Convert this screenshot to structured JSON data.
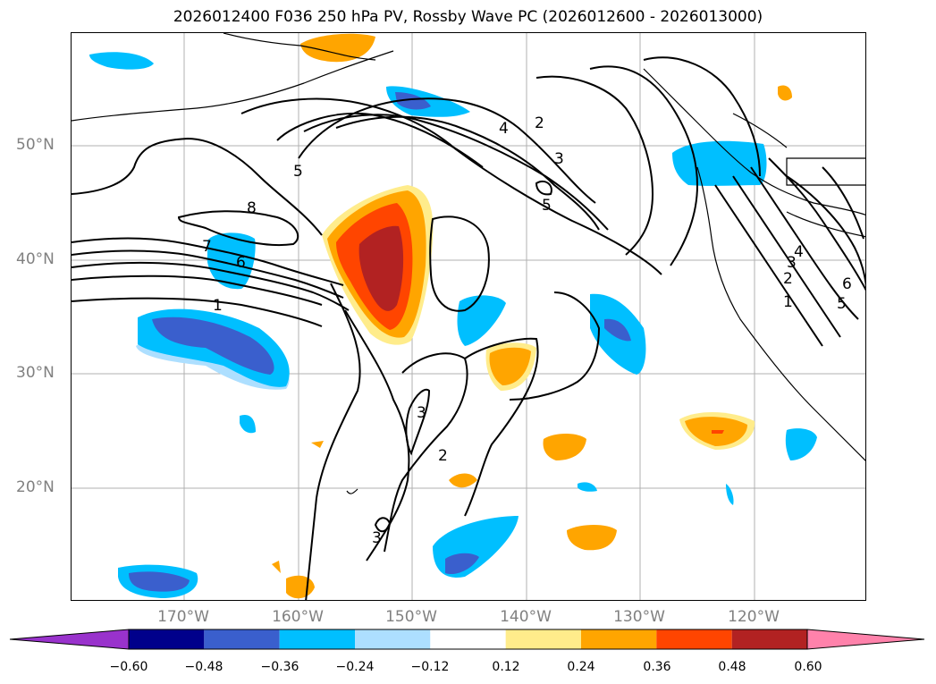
{
  "title": "2026012400 F036 250 hPa PV, Rossby Wave PC (2026012600 - 2026013000)",
  "axes": {
    "lat_labels": [
      "50°N",
      "40°N",
      "30°N",
      "20°N"
    ],
    "lon_labels": [
      "170°W",
      "160°W",
      "150°W",
      "140°W",
      "130°W",
      "120°W"
    ]
  },
  "colorbar": {
    "ticks": [
      "−0.60",
      "−0.48",
      "−0.36",
      "−0.24",
      "−0.12",
      "0.12",
      "0.24",
      "0.36",
      "0.48",
      "0.60"
    ],
    "colors": [
      "#9932CC",
      "#00008B",
      "#3A5FCD",
      "#00BFFF",
      "#ADDFFF",
      "#FFFFFF",
      "#FFEC8B",
      "#FFA500",
      "#FF4500",
      "#B22222",
      "#FF82AB"
    ]
  },
  "contour_labels": [
    "8",
    "5",
    "7",
    "6",
    "1",
    "4",
    "2",
    "3",
    "5",
    "3",
    "2",
    "3",
    "4",
    "3",
    "2",
    "1",
    "6",
    "5"
  ]
}
